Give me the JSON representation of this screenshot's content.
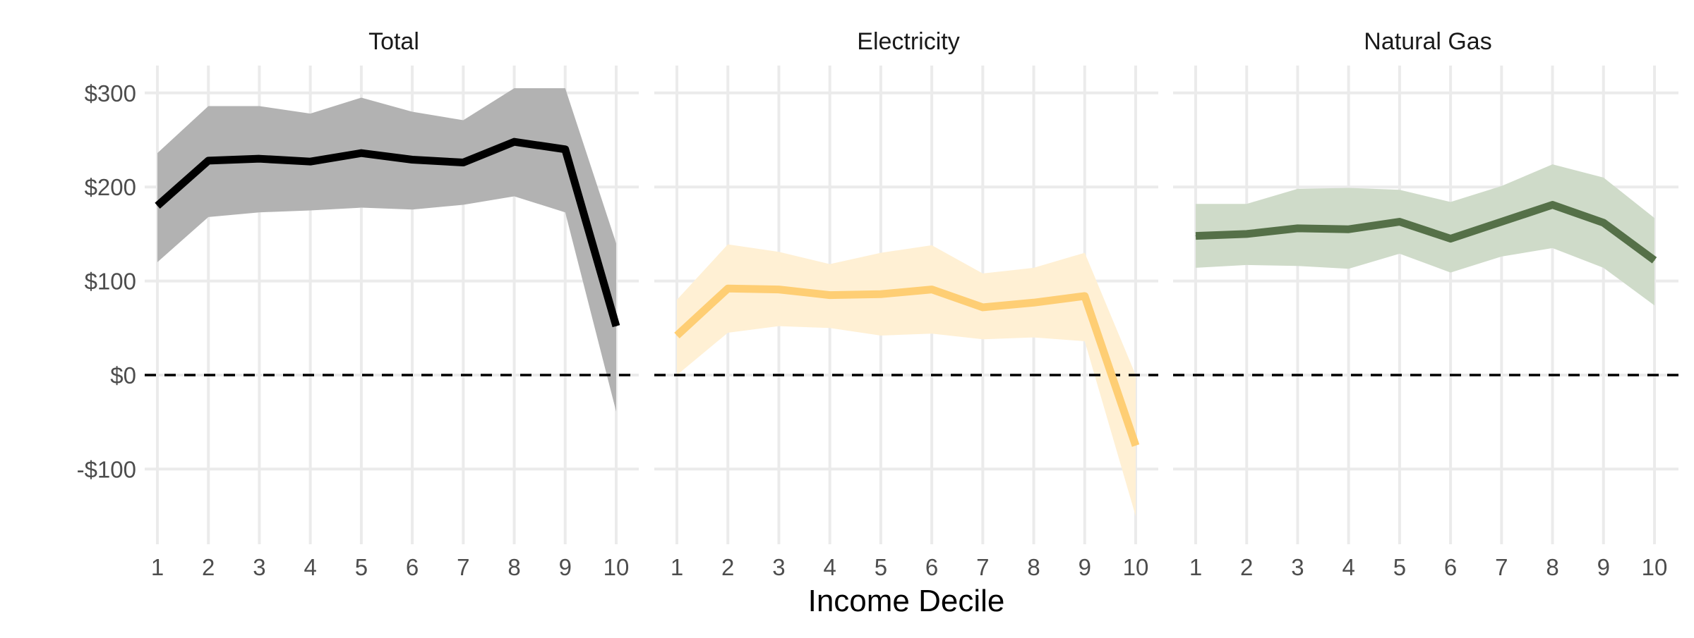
{
  "colors": {
    "background": "#ffffff",
    "grid": "#ebebeb",
    "zero_line": "#000000",
    "axis_text": "#4d4d4d"
  },
  "x_axis_title": "Income Decile",
  "chart_data": [
    {
      "type": "line",
      "title": "Total",
      "x": [
        1,
        2,
        3,
        4,
        5,
        6,
        7,
        8,
        9,
        10
      ],
      "series": [
        {
          "values": [
            180,
            228,
            230,
            227,
            236,
            229,
            226,
            248,
            240,
            52
          ],
          "lower": [
            120,
            168,
            173,
            175,
            178,
            176,
            181,
            190,
            173,
            -39
          ],
          "upper": [
            236,
            286,
            286,
            278,
            295,
            280,
            271,
            305,
            305,
            140
          ],
          "line_color": "#000000",
          "band_color": "#b2b2b2"
        }
      ],
      "ylim": [
        -180,
        320
      ],
      "xlim": [
        1,
        10
      ],
      "grid": true
    },
    {
      "type": "line",
      "title": "Electricity",
      "x": [
        1,
        2,
        3,
        4,
        5,
        6,
        7,
        8,
        9,
        10
      ],
      "series": [
        {
          "values": [
            42,
            92,
            91,
            85,
            86,
            91,
            72,
            77,
            84,
            -75
          ],
          "lower": [
            0,
            45,
            52,
            50,
            42,
            44,
            38,
            40,
            36,
            -150
          ],
          "upper": [
            80,
            139,
            131,
            118,
            130,
            138,
            108,
            114,
            130,
            0
          ],
          "line_color": "#fece74",
          "band_color": "#fff0d4"
        }
      ],
      "ylim": [
        -180,
        320
      ],
      "xlim": [
        1,
        10
      ],
      "grid": true
    },
    {
      "type": "line",
      "title": "Natural Gas",
      "x": [
        1,
        2,
        3,
        4,
        5,
        6,
        7,
        8,
        9,
        10
      ],
      "series": [
        {
          "values": [
            148,
            150,
            156,
            155,
            163,
            145,
            163,
            181,
            162,
            122
          ],
          "lower": [
            114,
            117,
            116,
            113,
            129,
            109,
            126,
            135,
            114,
            74
          ],
          "upper": [
            182,
            182,
            198,
            199,
            197,
            184,
            201,
            224,
            210,
            167
          ],
          "line_color": "#557048",
          "band_color": "#cfdbc9"
        }
      ],
      "ylim": [
        -180,
        320
      ],
      "xlim": [
        1,
        10
      ],
      "grid": true
    }
  ],
  "y_ticks": [
    {
      "value": 300,
      "label": "$300"
    },
    {
      "value": 200,
      "label": "$200"
    },
    {
      "value": 100,
      "label": "$100"
    },
    {
      "value": 0,
      "label": "$0"
    },
    {
      "value": -100,
      "label": "-$100"
    }
  ],
  "x_ticks": [
    "1",
    "2",
    "3",
    "4",
    "5",
    "6",
    "7",
    "8",
    "9",
    "10"
  ],
  "reference_line": {
    "value": 0,
    "style": "dashed"
  }
}
